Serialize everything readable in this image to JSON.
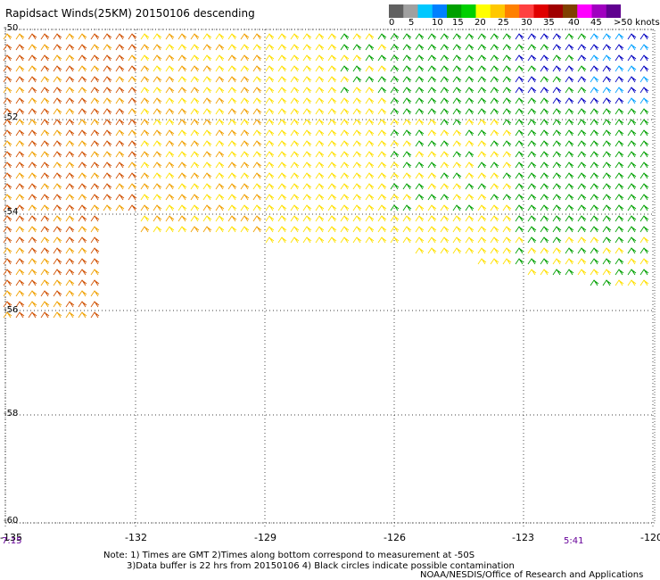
{
  "title": "Rapidsact Winds(25KM) 20150106 descending",
  "colorbar": {
    "colors": [
      "#606060",
      "#a0a0a0",
      "#00c8ff",
      "#0080ff",
      "#00a000",
      "#00d000",
      "#ffff00",
      "#ffc800",
      "#ff8000",
      "#ff4040",
      "#e00000",
      "#a00000",
      "#804000",
      "#ff00ff",
      "#a000c0",
      "#600090"
    ],
    "labels": [
      "0",
      "5",
      "10",
      "15",
      "20",
      "25",
      "30",
      "35",
      "40",
      "45",
      ">50 knots"
    ]
  },
  "map": {
    "lat_labels": [
      "-50",
      "-52",
      "-54",
      "-56",
      "-58",
      "-60"
    ],
    "lon_labels": [
      "-135",
      "-132",
      "-129",
      "-126",
      "-123",
      "-120"
    ],
    "time_labels": [
      "7:15",
      "5:41"
    ]
  },
  "notes": {
    "line1": "Note: 1) Times are GMT 2)Times along bottom correspond to measurement at -50S",
    "line2": "3)Data buffer is 22 hrs from 20150106 4) Black circles indicate possible contamination",
    "credit": "NOAA/NESDIS/Office of Research and Applications"
  },
  "wind_colors": {
    "strong": "#d05000",
    "moderate": "#f0a000",
    "light": "#ffe000",
    "green": "#00a000",
    "blue": "#0000c0",
    "cyan": "#00a0ff"
  }
}
